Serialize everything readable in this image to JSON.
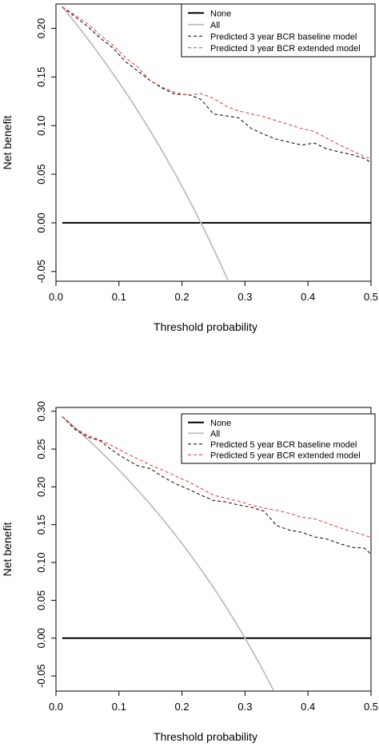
{
  "chart_data": [
    {
      "type": "line",
      "xlabel": "Threshold probability",
      "ylabel": "Net benefit",
      "xlim": [
        0,
        0.5
      ],
      "ylim": [
        -0.06,
        0.225
      ],
      "x_ticks": [
        0.0,
        0.1,
        0.2,
        0.3,
        0.4,
        0.5
      ],
      "x_tick_labels": [
        "0.0",
        "0.1",
        "0.2",
        "0.3",
        "0.4",
        "0.5"
      ],
      "y_ticks": [
        -0.05,
        0.0,
        0.05,
        0.1,
        0.15,
        0.2
      ],
      "y_tick_labels": [
        "-0.05",
        "0.00",
        "0.05",
        "0.10",
        "0.15",
        "0.20"
      ],
      "grid": false,
      "legend_position": "top-right",
      "series": [
        {
          "name": "None",
          "color": "#000000",
          "style": "solid",
          "x": [
            0.01,
            0.5
          ],
          "y": [
            0.0,
            0.0
          ]
        },
        {
          "name": "All",
          "color": "#bebebe",
          "style": "solid",
          "prevalence": 0.23,
          "x": [
            0.01,
            0.05,
            0.1,
            0.15,
            0.2,
            0.25,
            0.275
          ],
          "y": [
            0.222,
            0.189,
            0.144,
            0.094,
            0.038,
            -0.027,
            -0.062
          ]
        },
        {
          "name": "Predicted 3 year BCR baseline model",
          "color": "#000000",
          "style": "dashed",
          "x": [
            0.01,
            0.03,
            0.05,
            0.07,
            0.09,
            0.11,
            0.13,
            0.15,
            0.17,
            0.19,
            0.21,
            0.23,
            0.25,
            0.27,
            0.29,
            0.31,
            0.33,
            0.35,
            0.37,
            0.39,
            0.41,
            0.43,
            0.45,
            0.47,
            0.49,
            0.5
          ],
          "y": [
            0.222,
            0.212,
            0.202,
            0.19,
            0.18,
            0.166,
            0.156,
            0.146,
            0.138,
            0.132,
            0.132,
            0.127,
            0.112,
            0.11,
            0.108,
            0.097,
            0.091,
            0.086,
            0.083,
            0.08,
            0.082,
            0.076,
            0.073,
            0.07,
            0.066,
            0.062
          ]
        },
        {
          "name": "Predicted 3 year BCR extended model",
          "color": "#e8332a",
          "style": "dashed",
          "x": [
            0.01,
            0.03,
            0.05,
            0.07,
            0.09,
            0.11,
            0.13,
            0.15,
            0.17,
            0.19,
            0.21,
            0.23,
            0.25,
            0.27,
            0.29,
            0.31,
            0.33,
            0.35,
            0.37,
            0.39,
            0.41,
            0.43,
            0.45,
            0.47,
            0.49,
            0.5
          ],
          "y": [
            0.222,
            0.214,
            0.205,
            0.193,
            0.183,
            0.17,
            0.16,
            0.146,
            0.139,
            0.134,
            0.131,
            0.133,
            0.128,
            0.12,
            0.115,
            0.112,
            0.109,
            0.105,
            0.101,
            0.097,
            0.094,
            0.087,
            0.08,
            0.074,
            0.068,
            0.066
          ]
        }
      ]
    },
    {
      "type": "line",
      "xlabel": "Threshold probability",
      "ylabel": "Net benefit",
      "xlim": [
        0,
        0.5
      ],
      "ylim": [
        -0.07,
        0.305
      ],
      "x_ticks": [
        0.0,
        0.1,
        0.2,
        0.3,
        0.4,
        0.5
      ],
      "x_tick_labels": [
        "0.0",
        "0.1",
        "0.2",
        "0.3",
        "0.4",
        "0.5"
      ],
      "y_ticks": [
        -0.05,
        0.0,
        0.05,
        0.1,
        0.15,
        0.2,
        0.25,
        0.3
      ],
      "y_tick_labels": [
        "-0.05",
        "0.00",
        "0.05",
        "0.10",
        "0.15",
        "0.20",
        "0.25",
        "0.30"
      ],
      "grid": false,
      "legend_position": "top-right",
      "series": [
        {
          "name": "None",
          "color": "#000000",
          "style": "solid",
          "x": [
            0.01,
            0.5
          ],
          "y": [
            0.0,
            0.0
          ]
        },
        {
          "name": "All",
          "color": "#bebebe",
          "style": "solid",
          "prevalence": 0.3,
          "x": [
            0.01,
            0.05,
            0.1,
            0.15,
            0.2,
            0.25,
            0.3,
            0.345
          ],
          "y": [
            0.293,
            0.263,
            0.222,
            0.176,
            0.125,
            0.067,
            0.0,
            -0.069
          ]
        },
        {
          "name": "Predicted 5 year BCR baseline model",
          "color": "#000000",
          "style": "dashed",
          "x": [
            0.01,
            0.03,
            0.05,
            0.07,
            0.09,
            0.11,
            0.13,
            0.15,
            0.17,
            0.19,
            0.21,
            0.23,
            0.25,
            0.27,
            0.29,
            0.31,
            0.33,
            0.35,
            0.37,
            0.39,
            0.41,
            0.43,
            0.45,
            0.47,
            0.49,
            0.5
          ],
          "y": [
            0.293,
            0.276,
            0.266,
            0.261,
            0.248,
            0.237,
            0.228,
            0.224,
            0.213,
            0.204,
            0.197,
            0.189,
            0.182,
            0.18,
            0.176,
            0.173,
            0.168,
            0.149,
            0.143,
            0.14,
            0.134,
            0.131,
            0.125,
            0.12,
            0.119,
            0.111
          ]
        },
        {
          "name": "Predicted 5 year BCR extended model",
          "color": "#e8332a",
          "style": "dashed",
          "x": [
            0.01,
            0.03,
            0.05,
            0.07,
            0.09,
            0.11,
            0.13,
            0.15,
            0.17,
            0.19,
            0.21,
            0.23,
            0.25,
            0.27,
            0.29,
            0.31,
            0.33,
            0.35,
            0.37,
            0.39,
            0.41,
            0.43,
            0.45,
            0.47,
            0.49,
            0.5
          ],
          "y": [
            0.293,
            0.278,
            0.268,
            0.262,
            0.254,
            0.245,
            0.237,
            0.229,
            0.222,
            0.214,
            0.207,
            0.198,
            0.189,
            0.185,
            0.181,
            0.176,
            0.172,
            0.169,
            0.165,
            0.16,
            0.158,
            0.152,
            0.146,
            0.141,
            0.136,
            0.133
          ]
        }
      ]
    }
  ]
}
